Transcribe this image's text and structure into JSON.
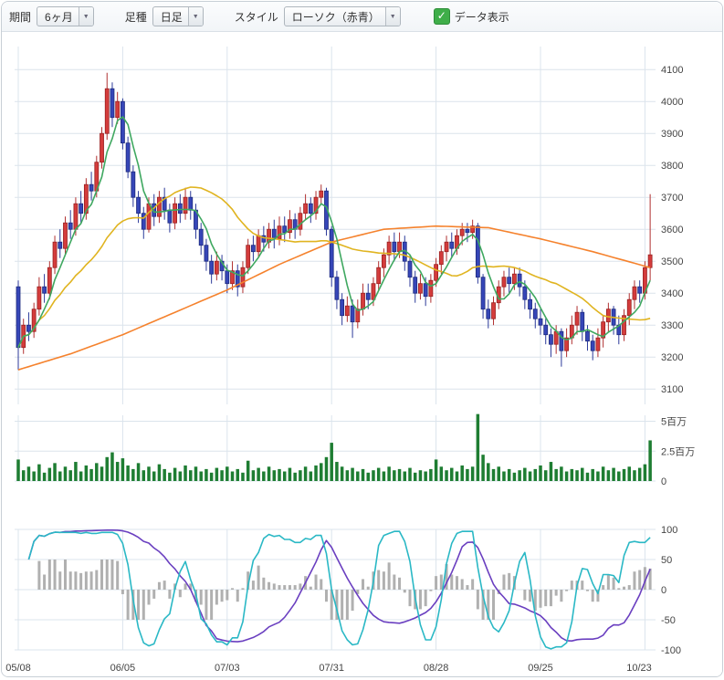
{
  "toolbar": {
    "period_label": "期間",
    "period_value": "6ヶ月",
    "candle_type_label": "足種",
    "candle_type_value": "日足",
    "style_label": "スタイル",
    "style_value": "ローソク（赤青）",
    "data_display_label": "データ表示",
    "data_display_checked": true,
    "arrow_glyph": "▼",
    "check_glyph": "✓"
  },
  "chart_data": {
    "type": "candlestick",
    "title": "",
    "x_ticks": [
      {
        "i": 0,
        "label": "05/08"
      },
      {
        "i": 20,
        "label": "06/05"
      },
      {
        "i": 40,
        "label": "07/03"
      },
      {
        "i": 60,
        "label": "07/31"
      },
      {
        "i": 80,
        "label": "08/28"
      },
      {
        "i": 100,
        "label": "09/25"
      },
      {
        "i": 120,
        "label": "10/23"
      }
    ],
    "price_ticks": [
      4100,
      4000,
      3900,
      3800,
      3700,
      3600,
      3500,
      3400,
      3300,
      3200,
      3100
    ],
    "price_range": [
      3052,
      4172
    ],
    "volume_ticks": [
      {
        "v": 5,
        "label": "5百万"
      },
      {
        "v": 2.5,
        "label": "2.5百万"
      },
      {
        "v": 0,
        "label": "0"
      }
    ],
    "osc_ticks": [
      100,
      50,
      0,
      -50,
      -100
    ],
    "osc_range": [
      -100,
      100
    ],
    "ohlc": [
      [
        3420,
        3440,
        3160,
        3230
      ],
      [
        3230,
        3320,
        3210,
        3300
      ],
      [
        3300,
        3340,
        3250,
        3280
      ],
      [
        3280,
        3370,
        3260,
        3350
      ],
      [
        3350,
        3450,
        3330,
        3420
      ],
      [
        3420,
        3460,
        3370,
        3400
      ],
      [
        3400,
        3500,
        3380,
        3480
      ],
      [
        3480,
        3580,
        3460,
        3560
      ],
      [
        3560,
        3600,
        3510,
        3540
      ],
      [
        3540,
        3640,
        3520,
        3620
      ],
      [
        3620,
        3660,
        3570,
        3600
      ],
      [
        3600,
        3700,
        3580,
        3680
      ],
      [
        3680,
        3720,
        3620,
        3650
      ],
      [
        3650,
        3760,
        3630,
        3740
      ],
      [
        3740,
        3780,
        3690,
        3720
      ],
      [
        3720,
        3830,
        3700,
        3810
      ],
      [
        3810,
        3920,
        3790,
        3900
      ],
      [
        3900,
        4090,
        3880,
        4040
      ],
      [
        4040,
        4060,
        3920,
        3950
      ],
      [
        3950,
        4030,
        3930,
        4000
      ],
      [
        4000,
        4010,
        3850,
        3870
      ],
      [
        3870,
        3890,
        3760,
        3780
      ],
      [
        3780,
        3800,
        3670,
        3700
      ],
      [
        3700,
        3720,
        3620,
        3650
      ],
      [
        3650,
        3670,
        3570,
        3600
      ],
      [
        3600,
        3700,
        3590,
        3680
      ],
      [
        3680,
        3710,
        3610,
        3640
      ],
      [
        3640,
        3720,
        3620,
        3700
      ],
      [
        3700,
        3730,
        3630,
        3660
      ],
      [
        3660,
        3680,
        3590,
        3620
      ],
      [
        3620,
        3700,
        3600,
        3680
      ],
      [
        3680,
        3710,
        3620,
        3650
      ],
      [
        3650,
        3730,
        3630,
        3700
      ],
      [
        3700,
        3720,
        3630,
        3660
      ],
      [
        3660,
        3680,
        3570,
        3600
      ],
      [
        3600,
        3620,
        3520,
        3550
      ],
      [
        3550,
        3570,
        3470,
        3500
      ],
      [
        3500,
        3520,
        3430,
        3460
      ],
      [
        3460,
        3530,
        3440,
        3500
      ],
      [
        3500,
        3520,
        3440,
        3470
      ],
      [
        3470,
        3490,
        3400,
        3430
      ],
      [
        3430,
        3500,
        3410,
        3470
      ],
      [
        3470,
        3490,
        3390,
        3420
      ],
      [
        3420,
        3500,
        3400,
        3480
      ],
      [
        3480,
        3570,
        3460,
        3550
      ],
      [
        3550,
        3580,
        3500,
        3530
      ],
      [
        3530,
        3600,
        3510,
        3580
      ],
      [
        3580,
        3610,
        3530,
        3560
      ],
      [
        3560,
        3620,
        3540,
        3600
      ],
      [
        3600,
        3630,
        3540,
        3570
      ],
      [
        3570,
        3640,
        3550,
        3610
      ],
      [
        3610,
        3640,
        3560,
        3590
      ],
      [
        3590,
        3660,
        3570,
        3630
      ],
      [
        3630,
        3650,
        3570,
        3600
      ],
      [
        3600,
        3670,
        3580,
        3650
      ],
      [
        3650,
        3710,
        3630,
        3680
      ],
      [
        3680,
        3700,
        3620,
        3650
      ],
      [
        3650,
        3720,
        3630,
        3700
      ],
      [
        3700,
        3740,
        3680,
        3720
      ],
      [
        3720,
        3730,
        3580,
        3600
      ],
      [
        3600,
        3610,
        3420,
        3450
      ],
      [
        3450,
        3470,
        3350,
        3380
      ],
      [
        3380,
        3400,
        3300,
        3330
      ],
      [
        3330,
        3390,
        3310,
        3360
      ],
      [
        3360,
        3380,
        3260,
        3310
      ],
      [
        3310,
        3380,
        3290,
        3350
      ],
      [
        3350,
        3430,
        3330,
        3400
      ],
      [
        3400,
        3430,
        3350,
        3380
      ],
      [
        3380,
        3450,
        3360,
        3430
      ],
      [
        3430,
        3500,
        3410,
        3480
      ],
      [
        3480,
        3540,
        3450,
        3520
      ],
      [
        3520,
        3580,
        3490,
        3560
      ],
      [
        3560,
        3590,
        3500,
        3530
      ],
      [
        3530,
        3590,
        3510,
        3560
      ],
      [
        3560,
        3580,
        3470,
        3500
      ],
      [
        3500,
        3520,
        3420,
        3450
      ],
      [
        3450,
        3470,
        3370,
        3400
      ],
      [
        3400,
        3460,
        3380,
        3430
      ],
      [
        3430,
        3450,
        3360,
        3390
      ],
      [
        3390,
        3460,
        3370,
        3440
      ],
      [
        3440,
        3510,
        3420,
        3490
      ],
      [
        3490,
        3550,
        3460,
        3530
      ],
      [
        3530,
        3580,
        3500,
        3560
      ],
      [
        3560,
        3590,
        3510,
        3540
      ],
      [
        3540,
        3600,
        3520,
        3580
      ],
      [
        3580,
        3620,
        3550,
        3600
      ],
      [
        3600,
        3620,
        3560,
        3590
      ],
      [
        3590,
        3630,
        3570,
        3610
      ],
      [
        3610,
        3620,
        3430,
        3450
      ],
      [
        3450,
        3460,
        3320,
        3350
      ],
      [
        3350,
        3380,
        3290,
        3320
      ],
      [
        3320,
        3390,
        3300,
        3370
      ],
      [
        3370,
        3440,
        3350,
        3420
      ],
      [
        3420,
        3470,
        3390,
        3450
      ],
      [
        3450,
        3480,
        3400,
        3430
      ],
      [
        3430,
        3480,
        3410,
        3460
      ],
      [
        3460,
        3480,
        3390,
        3420
      ],
      [
        3420,
        3440,
        3350,
        3380
      ],
      [
        3380,
        3400,
        3320,
        3350
      ],
      [
        3350,
        3370,
        3290,
        3320
      ],
      [
        3320,
        3350,
        3270,
        3300
      ],
      [
        3300,
        3320,
        3240,
        3270
      ],
      [
        3270,
        3290,
        3200,
        3240
      ],
      [
        3240,
        3300,
        3210,
        3280
      ],
      [
        3280,
        3290,
        3170,
        3220
      ],
      [
        3220,
        3290,
        3200,
        3260
      ],
      [
        3260,
        3330,
        3240,
        3300
      ],
      [
        3300,
        3360,
        3270,
        3340
      ],
      [
        3340,
        3350,
        3250,
        3280
      ],
      [
        3280,
        3300,
        3220,
        3250
      ],
      [
        3250,
        3270,
        3190,
        3220
      ],
      [
        3220,
        3290,
        3200,
        3260
      ],
      [
        3260,
        3330,
        3230,
        3310
      ],
      [
        3310,
        3370,
        3280,
        3350
      ],
      [
        3350,
        3360,
        3270,
        3300
      ],
      [
        3300,
        3330,
        3240,
        3270
      ],
      [
        3270,
        3350,
        3250,
        3330
      ],
      [
        3330,
        3400,
        3300,
        3380
      ],
      [
        3380,
        3440,
        3350,
        3420
      ],
      [
        3420,
        3440,
        3370,
        3400
      ],
      [
        3400,
        3500,
        3380,
        3480
      ],
      [
        3480,
        3710,
        3440,
        3520
      ]
    ],
    "volume_millions": [
      1.8,
      0.9,
      1.2,
      0.8,
      1.4,
      0.7,
      1.1,
      1.5,
      0.8,
      1.2,
      0.9,
      1.6,
      0.8,
      1.3,
      1.0,
      1.5,
      1.2,
      2.0,
      2.4,
      1.6,
      1.9,
      1.3,
      1.0,
      1.5,
      0.9,
      1.2,
      0.8,
      1.4,
      1.0,
      0.7,
      1.1,
      0.8,
      1.3,
      0.9,
      1.2,
      0.8,
      1.0,
      0.7,
      1.1,
      0.9,
      1.2,
      0.8,
      1.0,
      0.7,
      1.7,
      0.9,
      1.1,
      0.8,
      1.2,
      0.9,
      1.0,
      0.8,
      1.1,
      0.7,
      0.9,
      1.2,
      0.8,
      1.3,
      1.5,
      2.0,
      3.2,
      1.6,
      1.2,
      0.9,
      1.1,
      0.8,
      1.0,
      0.7,
      0.9,
      1.1,
      0.8,
      1.2,
      0.9,
      1.0,
      0.8,
      1.1,
      0.7,
      0.9,
      0.8,
      1.0,
      1.8,
      1.2,
      0.9,
      1.1,
      0.8,
      1.3,
      1.0,
      1.2,
      5.6,
      2.2,
      1.5,
      1.0,
      1.2,
      0.8,
      1.0,
      0.7,
      0.9,
      1.1,
      0.8,
      1.0,
      1.3,
      0.9,
      1.6,
      1.0,
      1.2,
      0.8,
      1.0,
      0.9,
      1.1,
      0.7,
      1.0,
      0.8,
      1.2,
      0.9,
      1.1,
      0.8,
      1.0,
      1.2,
      0.9,
      1.1,
      1.4,
      3.4
    ],
    "moving_averages": {
      "short_period": 5,
      "mid_period": 25,
      "long_anchors": [
        [
          0,
          3160
        ],
        [
          10,
          3210
        ],
        [
          20,
          3270
        ],
        [
          30,
          3340
        ],
        [
          40,
          3410
        ],
        [
          50,
          3490
        ],
        [
          60,
          3560
        ],
        [
          70,
          3600
        ],
        [
          80,
          3610
        ],
        [
          90,
          3605
        ],
        [
          100,
          3570
        ],
        [
          110,
          3530
        ],
        [
          121,
          3480
        ]
      ]
    },
    "oscillator": {
      "fast_period": 9,
      "slow_period": 26,
      "histogram_momentum_days": 4,
      "histogram_scale": 0.25,
      "histogram_cap": 50
    },
    "colors": {
      "up": "#d43c3c",
      "up_border": "#9a2020",
      "down": "#3646b8",
      "down_border": "#1d2a7e",
      "wick_up": "#b03030",
      "wick_down": "#2c3a9a",
      "ma_short": "#3fa860",
      "ma_mid": "#e0b420",
      "ma_long": "#f5822d",
      "volume": "#1e7d32",
      "osc_fast": "#2ab8c5",
      "osc_slow": "#6a3fc0",
      "histogram": "#b0b0b0",
      "grid": "#dbe4ec",
      "axis_text": "#444444"
    }
  }
}
